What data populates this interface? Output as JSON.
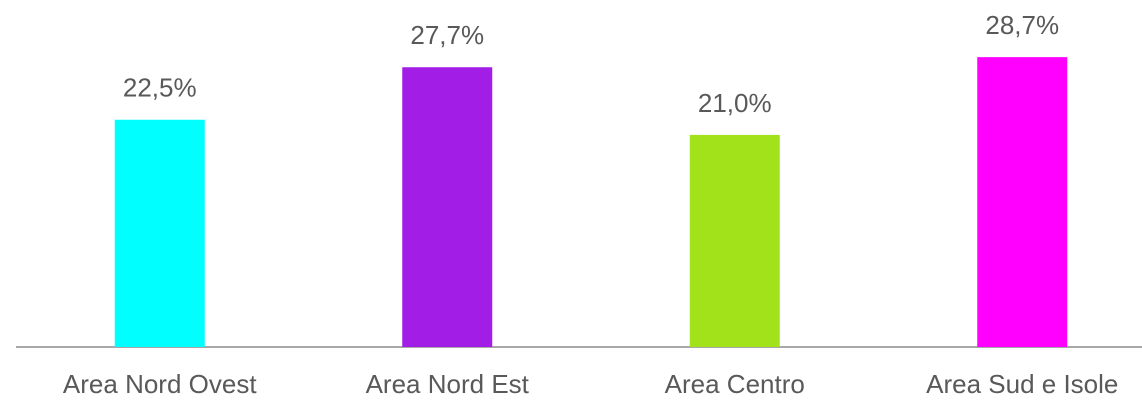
{
  "chart_data": {
    "type": "bar",
    "categories": [
      "Area Nord Ovest",
      "Area Nord Est",
      "Area Centro",
      "Area Sud e Isole"
    ],
    "values": [
      22.5,
      27.7,
      21.0,
      28.7
    ],
    "value_labels": [
      "22,5%",
      "27,7%",
      "21,0%",
      "28,7%"
    ],
    "colors": [
      "#00ffff",
      "#a21ee6",
      "#a2e21a",
      "#ff00ff"
    ],
    "ylim": [
      0,
      30
    ]
  }
}
